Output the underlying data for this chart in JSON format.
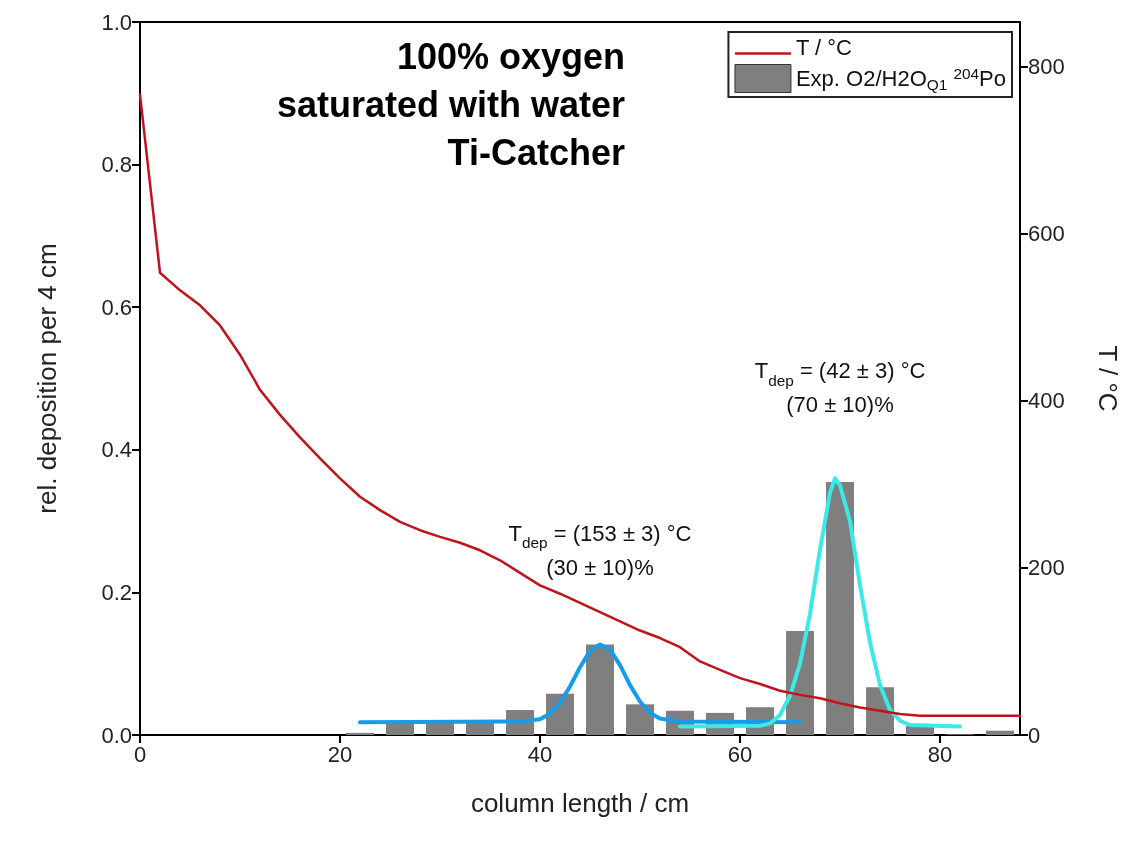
{
  "chart_data": {
    "type": "bar",
    "xlabel": "column length / cm",
    "ylabel": "rel. deposition per 4 cm",
    "y2label": "T / °C",
    "xlim": [
      0,
      88
    ],
    "xticks": [
      0,
      20,
      40,
      60,
      80
    ],
    "ylim": [
      0,
      1.0
    ],
    "yticks": [
      {
        "value": 0,
        "label": "0.0"
      },
      0.2,
      0.4,
      0.6,
      0.8,
      {
        "value": 1.0,
        "label": "1.0"
      }
    ],
    "y2lim": [
      0,
      853
    ],
    "y2ticks": [
      0,
      200,
      400,
      600,
      800
    ],
    "grid": false,
    "legend": "top right",
    "annotations": [
      "100% oxygen",
      "saturated with water",
      "Ti-Catcher",
      {
        "text": "T$_{dep}$ = (153 ± 3) °C\n(30 ± 10)%",
        "x": 46,
        "y": 0.127
      },
      {
        "text": "T$_{dep}$ = (42 ± 3) °C\n(70 ± 10)%",
        "x": 70,
        "y": 0.355
      }
    ],
    "series": [
      {
        "type": "line",
        "name": "T / °C",
        "color": "#c0141c",
        "axis": "y2",
        "marker": "none",
        "line_style": "solid",
        "x": [
          0,
          2,
          4,
          6,
          8,
          10,
          12,
          14,
          16,
          18,
          20,
          22,
          24,
          26,
          28,
          30,
          32,
          34,
          36,
          38,
          40,
          42,
          44,
          46,
          48,
          50,
          52,
          54,
          56,
          58,
          60,
          62,
          64,
          66,
          68,
          70,
          72,
          74,
          76,
          78,
          80,
          88
        ],
        "values": [
          766,
          553,
          532,
          514,
          490,
          455,
          413,
          383,
          356,
          331,
          307,
          285,
          269,
          255,
          245,
          237,
          230,
          221,
          209,
          194,
          179,
          169,
          158,
          147,
          136,
          125,
          116,
          105,
          88,
          78,
          68,
          61,
          53,
          48,
          44,
          38,
          33,
          29,
          25,
          23,
          23,
          23
        ]
      },
      {
        "name": "Exp. O2/H2O$_{Q1}$ $^{204}$Po",
        "color": "#7f7f7f",
        "x": [
          22,
          26,
          30,
          34,
          38,
          42,
          46,
          50,
          54,
          58,
          62,
          66,
          70,
          74,
          78,
          82,
          86
        ],
        "values": [
          0.003,
          0.018,
          0.018,
          0.018,
          0.035,
          0.058,
          0.127,
          0.043,
          0.034,
          0.031,
          0.039,
          0.146,
          0.355,
          0.067,
          0.013,
          0.001,
          0.006
        ]
      },
      {
        "type": "line",
        "color": "#1a9bea",
        "marker": "none",
        "line_style": "solid",
        "x": [
          22,
          38,
          40,
          41,
          42,
          43,
          44,
          45,
          46,
          47,
          48,
          49,
          50,
          51,
          52,
          54,
          66
        ],
        "values": [
          0.018,
          0.019,
          0.022,
          0.03,
          0.045,
          0.068,
          0.095,
          0.118,
          0.127,
          0.12,
          0.098,
          0.07,
          0.047,
          0.031,
          0.023,
          0.019,
          0.018
        ]
      },
      {
        "type": "line",
        "color": "#3ce8e8",
        "marker": "none",
        "line_style": "solid",
        "x": [
          54,
          62,
          63,
          64,
          65,
          66,
          67,
          68,
          69,
          69.5,
          70,
          71,
          72,
          73,
          74,
          75,
          76,
          77,
          82
        ],
        "values": [
          0.012,
          0.013,
          0.016,
          0.028,
          0.055,
          0.1,
          0.17,
          0.26,
          0.34,
          0.36,
          0.35,
          0.3,
          0.21,
          0.13,
          0.07,
          0.035,
          0.02,
          0.014,
          0.012
        ]
      }
    ]
  }
}
